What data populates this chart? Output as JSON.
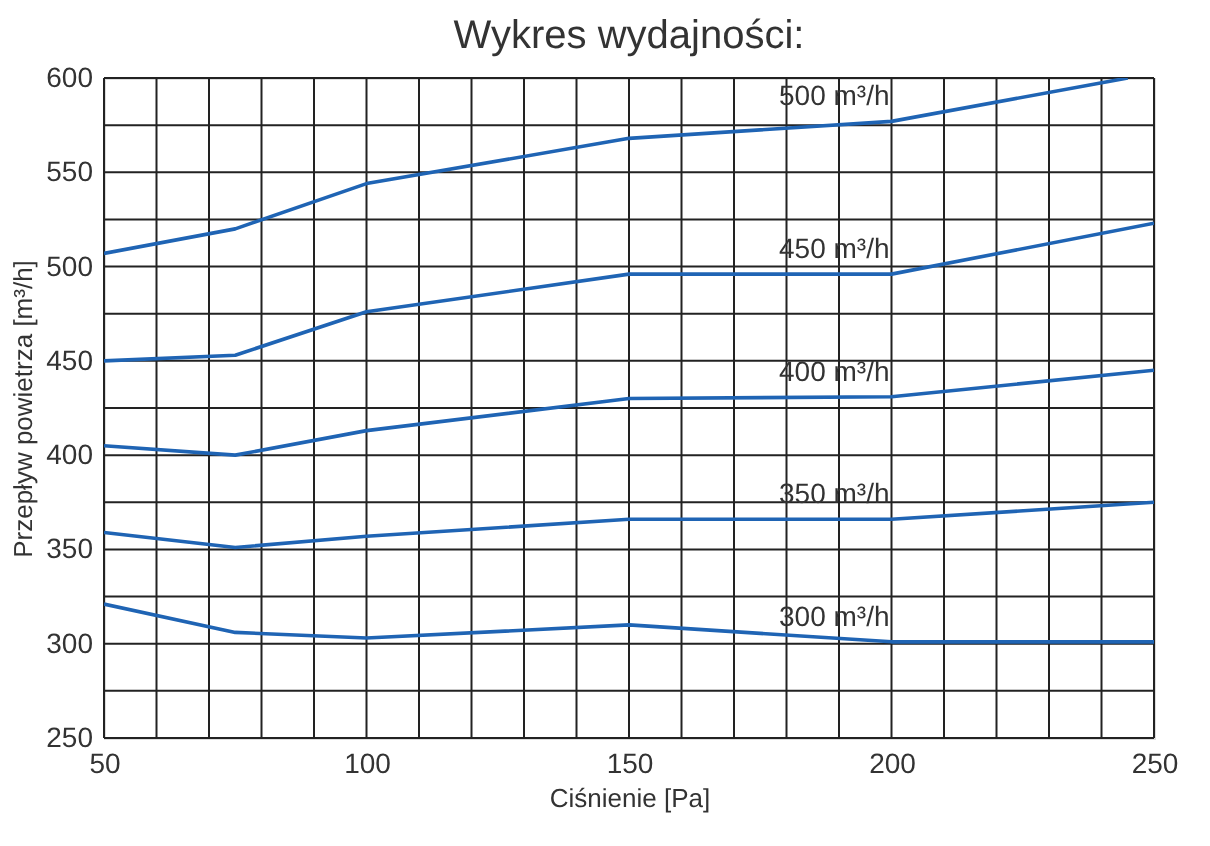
{
  "chart_data": {
    "type": "line",
    "title": "Wykres wydajności:",
    "xlabel": "Ciśnienie [Pa]",
    "ylabel": "Przepływ powietrza [m³/h]",
    "xlim": [
      50,
      250
    ],
    "ylim": [
      250,
      600
    ],
    "xticks": [
      50,
      {
        "value": 60,
        "label": null
      },
      {
        "value": 70,
        "label": null
      },
      {
        "value": 80,
        "label": null
      },
      {
        "value": 90,
        "label": null
      },
      100,
      {
        "value": 110,
        "label": null
      },
      {
        "value": 120,
        "label": null
      },
      {
        "value": 130,
        "label": null
      },
      {
        "value": 140,
        "label": null
      },
      150,
      {
        "value": 160,
        "label": null
      },
      {
        "value": 170,
        "label": null
      },
      {
        "value": 180,
        "label": null
      },
      {
        "value": 190,
        "label": null
      },
      200,
      {
        "value": 210,
        "label": null
      },
      {
        "value": 220,
        "label": null
      },
      {
        "value": 230,
        "label": null
      },
      {
        "value": 240,
        "label": null
      },
      250
    ],
    "yticks": [
      250,
      {
        "value": 275,
        "label": null
      },
      300,
      {
        "value": 325,
        "label": null
      },
      350,
      {
        "value": 375,
        "label": null
      },
      400,
      {
        "value": 425,
        "label": null
      },
      450,
      {
        "value": 475,
        "label": null
      },
      500,
      {
        "value": 525,
        "label": null
      },
      550,
      {
        "value": 575,
        "label": null
      },
      600
    ],
    "grid": true,
    "legend": false,
    "marker": "none",
    "line_style": "solid",
    "series": [
      {
        "name": "500 m³/h",
        "color": "#1f64b4",
        "x": [
          50,
          75,
          100,
          150,
          200,
          245
        ],
        "values": [
          507,
          520,
          544,
          568,
          577,
          600
        ]
      },
      {
        "name": "450 m³/h",
        "color": "#1f64b4",
        "x": [
          50,
          75,
          100,
          150,
          200,
          250
        ],
        "values": [
          450,
          453,
          476,
          496,
          496,
          523
        ]
      },
      {
        "name": "400 m³/h",
        "color": "#1f64b4",
        "x": [
          50,
          75,
          100,
          150,
          200,
          250
        ],
        "values": [
          405,
          400,
          413,
          430,
          431,
          445
        ]
      },
      {
        "name": "350 m³/h",
        "color": "#1f64b4",
        "x": [
          50,
          75,
          100,
          150,
          200,
          250
        ],
        "values": [
          359,
          351,
          357,
          366,
          366,
          375
        ]
      },
      {
        "name": "300 m³/h",
        "color": "#1f64b4",
        "x": [
          50,
          75,
          100,
          150,
          200,
          250
        ],
        "values": [
          321,
          306,
          303,
          310,
          301,
          301
        ]
      }
    ]
  }
}
